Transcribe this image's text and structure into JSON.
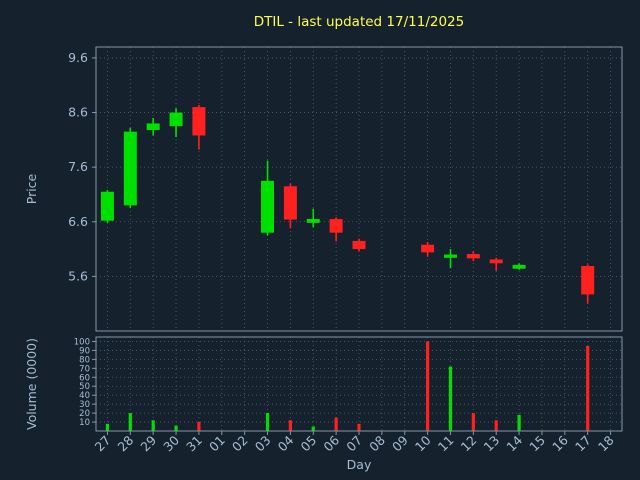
{
  "title": "DTIL - last updated 17/11/2025",
  "colors": {
    "background": "#16212e",
    "grid": "#51626f",
    "frame": "#8496a7",
    "up": "#00e000",
    "down": "#ff2020",
    "title": "#ffff4d",
    "axis_text": "#a6bdd4"
  },
  "chart_data": {
    "type": "candlestick+volume",
    "title": "DTIL - last updated 17/11/2025",
    "xlabel": "Day",
    "ylabel_price": "Price",
    "ylabel_volume": "Volume (0000)",
    "x_ticks": [
      "27",
      "28",
      "29",
      "30",
      "31",
      "01",
      "02",
      "03",
      "04",
      "05",
      "06",
      "07",
      "08",
      "09",
      "10",
      "11",
      "12",
      "13",
      "14",
      "15",
      "16",
      "17",
      "18"
    ],
    "price_ticks": [
      9.6,
      8.6,
      7.6,
      6.6,
      5.6
    ],
    "price_ylim": [
      4.6,
      9.8
    ],
    "volume_ticks": [
      10,
      20,
      30,
      40,
      50,
      60,
      70,
      80,
      90,
      100
    ],
    "volume_ylim": [
      0,
      105
    ],
    "grid": "dotted",
    "candles": [
      {
        "i": 0,
        "day": "27",
        "open": 6.62,
        "high": 7.18,
        "low": 6.58,
        "close": 7.15,
        "volume": 8
      },
      {
        "i": 1,
        "day": "28",
        "open": 6.9,
        "high": 8.32,
        "low": 6.85,
        "close": 8.25,
        "volume": 20
      },
      {
        "i": 2,
        "day": "29",
        "open": 8.28,
        "high": 8.5,
        "low": 8.18,
        "close": 8.4,
        "volume": 12
      },
      {
        "i": 3,
        "day": "30",
        "open": 8.35,
        "high": 8.68,
        "low": 8.15,
        "close": 8.6,
        "volume": 6
      },
      {
        "i": 4,
        "day": "31",
        "open": 8.7,
        "high": 8.74,
        "low": 7.92,
        "close": 8.18,
        "volume": 10
      },
      {
        "i": 7,
        "day": "03",
        "open": 6.4,
        "high": 7.72,
        "low": 6.35,
        "close": 7.35,
        "volume": 20
      },
      {
        "i": 8,
        "day": "04",
        "open": 7.25,
        "high": 7.3,
        "low": 6.48,
        "close": 6.64,
        "volume": 12
      },
      {
        "i": 9,
        "day": "05",
        "open": 6.58,
        "high": 6.84,
        "low": 6.5,
        "close": 6.65,
        "volume": 5
      },
      {
        "i": 10,
        "day": "06",
        "open": 6.65,
        "high": 6.68,
        "low": 6.24,
        "close": 6.4,
        "volume": 15
      },
      {
        "i": 11,
        "day": "07",
        "open": 6.25,
        "high": 6.29,
        "low": 6.06,
        "close": 6.1,
        "volume": 8
      },
      {
        "i": 14,
        "day": "10",
        "open": 6.18,
        "high": 6.23,
        "low": 5.96,
        "close": 6.04,
        "volume": 100
      },
      {
        "i": 15,
        "day": "11",
        "open": 5.94,
        "high": 6.1,
        "low": 5.75,
        "close": 6.0,
        "volume": 72
      },
      {
        "i": 16,
        "day": "12",
        "open": 6.01,
        "high": 6.06,
        "low": 5.88,
        "close": 5.93,
        "volume": 20
      },
      {
        "i": 17,
        "day": "13",
        "open": 5.91,
        "high": 5.94,
        "low": 5.7,
        "close": 5.84,
        "volume": 12
      },
      {
        "i": 18,
        "day": "14",
        "open": 5.74,
        "high": 5.84,
        "low": 5.72,
        "close": 5.81,
        "volume": 18
      },
      {
        "i": 21,
        "day": "17",
        "open": 5.79,
        "high": 5.82,
        "low": 5.1,
        "close": 5.27,
        "volume": 95
      }
    ]
  }
}
